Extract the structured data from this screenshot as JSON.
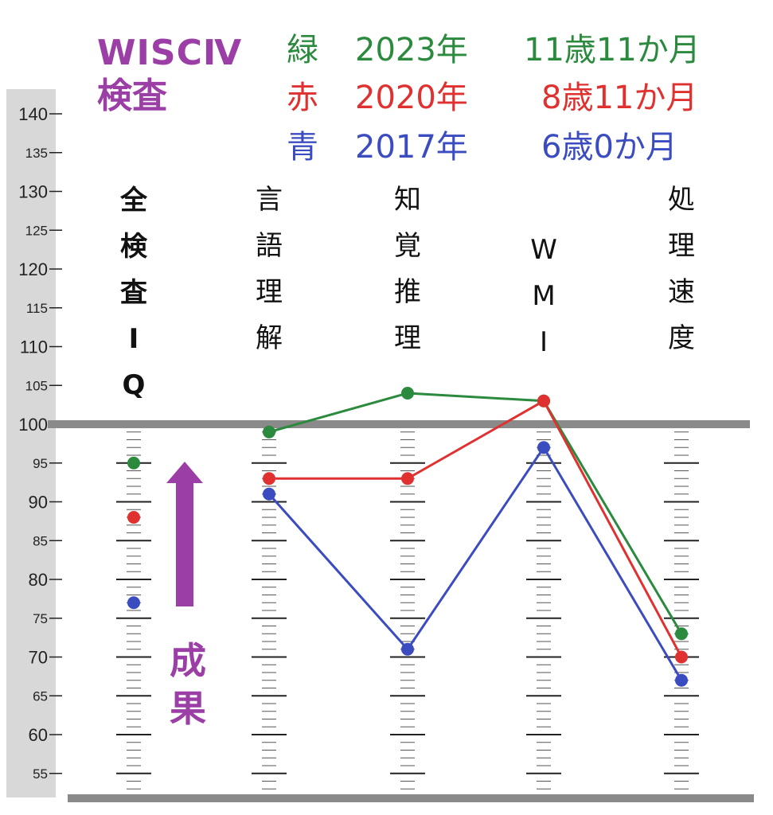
{
  "title": {
    "line1": "WISCⅣ",
    "line2": "検査"
  },
  "legend": [
    {
      "color_word": "緑",
      "year": "2023年",
      "age": "11歳11か月",
      "color": "#2b8a3e"
    },
    {
      "color_word": "赤",
      "year": "2020年",
      "age": "8歳11か月",
      "color": "#e03131"
    },
    {
      "color_word": "青",
      "year": "2017年",
      "age": "6歳0か月",
      "color": "#3b4cc0"
    }
  ],
  "annotation": {
    "text": "成果"
  },
  "chart_data": {
    "type": "line",
    "title": "WISCⅣ検査",
    "categories": [
      "全検査IQ",
      "言語理解",
      "知覚推理",
      "WMI",
      "処理速度"
    ],
    "category_labels": [
      [
        "全",
        "検",
        "査",
        "I",
        "Q"
      ],
      [
        "言",
        "語",
        "理",
        "解"
      ],
      [
        "知",
        "覚",
        "推",
        "理"
      ],
      [
        "W",
        "M",
        "I"
      ],
      [
        "処",
        "理",
        "速",
        "度"
      ]
    ],
    "ylim": [
      50,
      145
    ],
    "yticks": [
      140,
      135,
      130,
      125,
      120,
      115,
      110,
      105,
      100,
      95,
      90,
      85,
      80,
      75,
      70,
      65,
      60,
      55
    ],
    "series": [
      {
        "name": "緑 2023年 11歳11か月",
        "color": "#2b8a3e",
        "values": [
          95,
          99,
          104,
          103,
          73
        ],
        "connect_from": 1
      },
      {
        "name": "赤 2020年 8歳11か月",
        "color": "#e03131",
        "values": [
          88,
          93,
          93,
          103,
          70
        ],
        "connect_from": 1
      },
      {
        "name": "青 2017年 6歳0か月",
        "color": "#3b4cc0",
        "values": [
          77,
          91,
          71,
          97,
          67
        ],
        "connect_from": 1
      }
    ],
    "reference_line": 100,
    "grid": false
  }
}
